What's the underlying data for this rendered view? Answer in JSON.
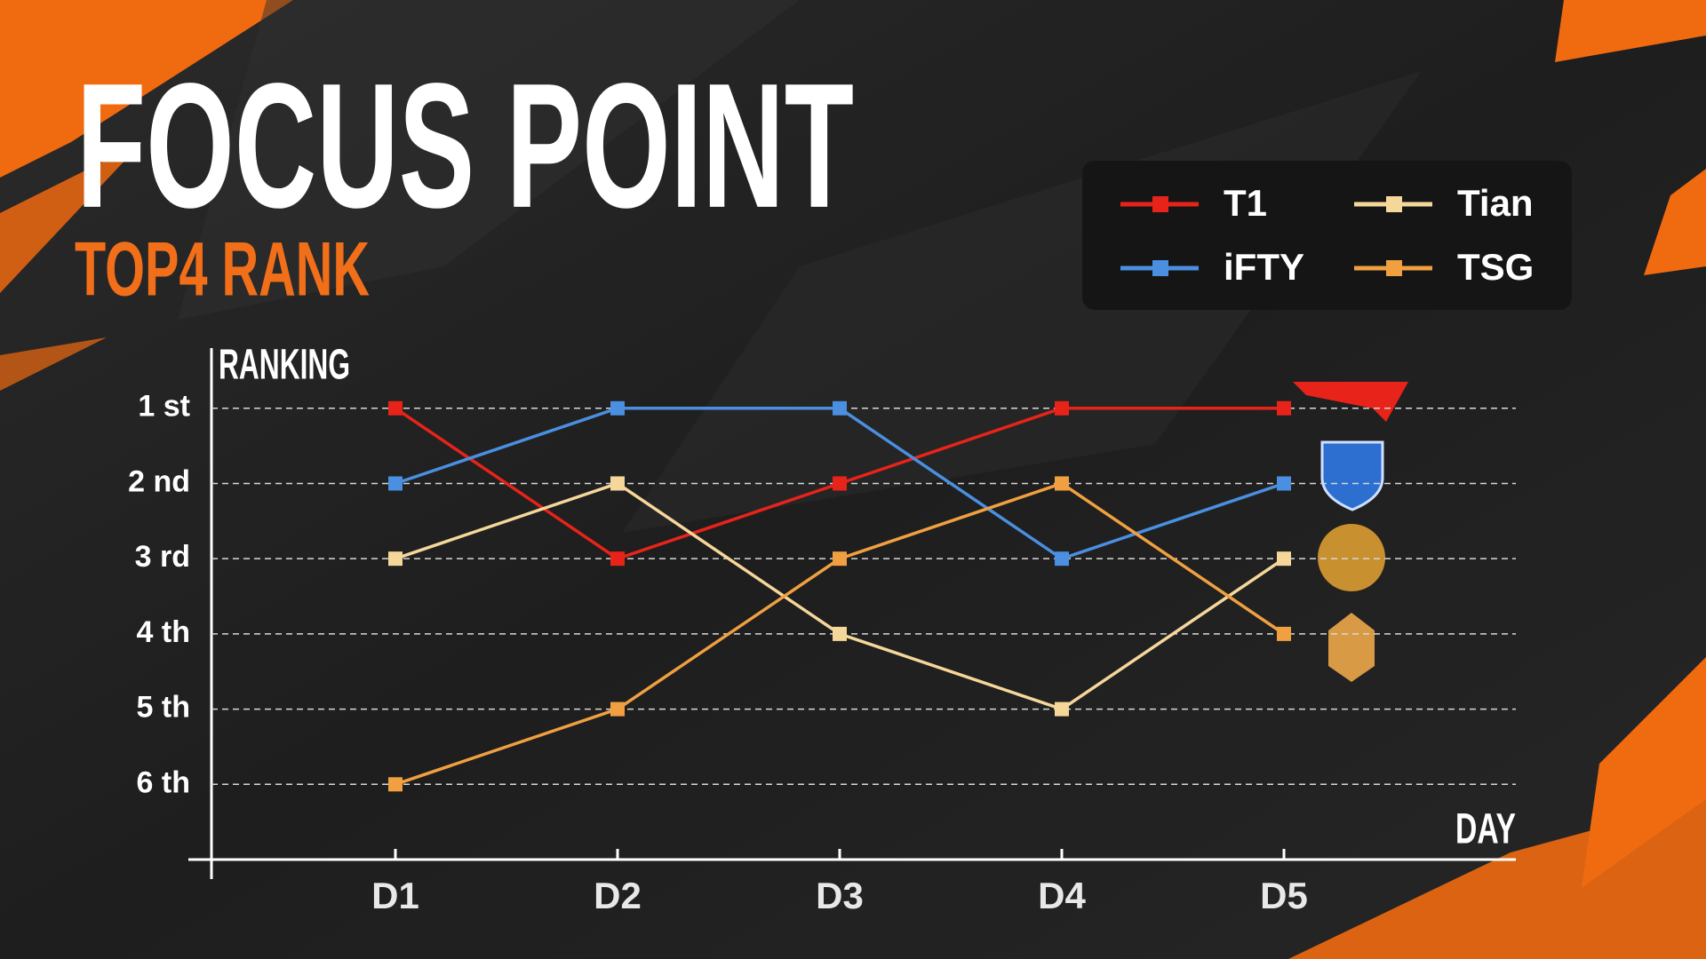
{
  "chart_data": {
    "type": "line",
    "title": "FOCUS POINT",
    "subtitle": "TOP4 RANK",
    "y_label": "RANKING",
    "x_label": "DAY",
    "categories": [
      "D1",
      "D2",
      "D3",
      "D4",
      "D5"
    ],
    "series": [
      {
        "name": "T1",
        "color": "#e8231a",
        "values": [
          1,
          3,
          2,
          1,
          1
        ]
      },
      {
        "name": "iFTY",
        "color": "#4a8fe0",
        "values": [
          2,
          1,
          1,
          3,
          2
        ]
      },
      {
        "name": "Tian",
        "color": "#f5d79a",
        "values": [
          3,
          2,
          4,
          5,
          3
        ]
      },
      {
        "name": "TSG",
        "color": "#f0a040",
        "values": [
          6,
          5,
          3,
          2,
          4
        ]
      }
    ],
    "ylim": [
      0.2,
      7
    ],
    "y_reversed": true,
    "yticks": [
      {
        "value": 1,
        "label": "1 st"
      },
      {
        "value": 2,
        "label": "2 nd"
      },
      {
        "value": 3,
        "label": "3 rd"
      },
      {
        "value": 4,
        "label": "4 th"
      },
      {
        "value": 5,
        "label": "5 th"
      },
      {
        "value": 6,
        "label": "6 th"
      }
    ],
    "grid": true,
    "legend_position": "top-right"
  }
}
